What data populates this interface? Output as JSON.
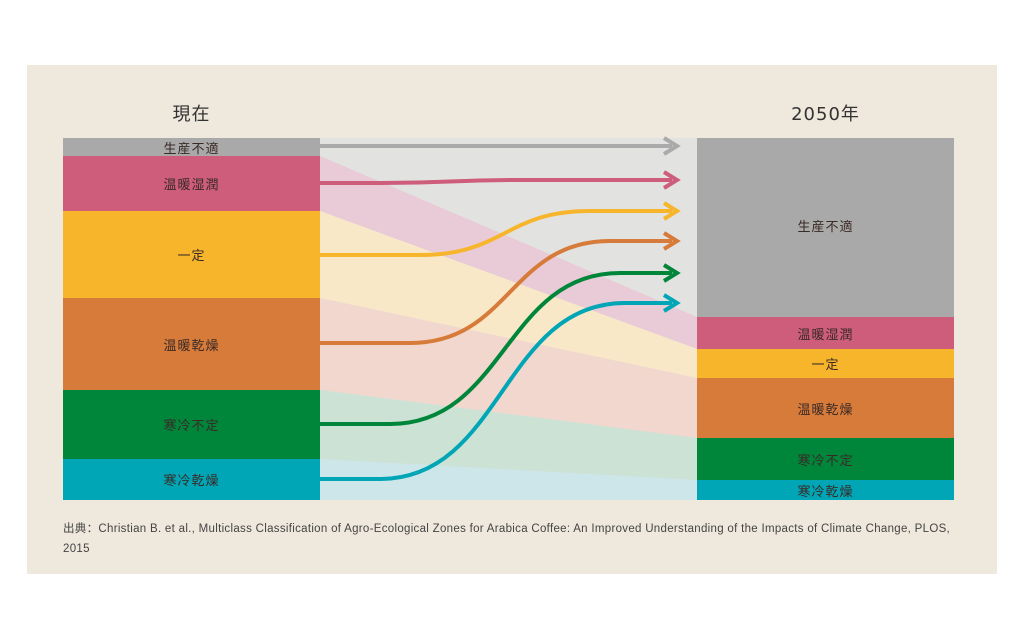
{
  "titles": {
    "left": "現在",
    "right": "2050年"
  },
  "categories": [
    {
      "label": "生産不適",
      "color": "#a9a9a9",
      "band": "#e2e2e0",
      "line": "#aaaaaa",
      "now": [
        0,
        18
      ],
      "future": [
        0,
        179
      ]
    },
    {
      "label": "温暖湿潤",
      "color": "#cd5d7b",
      "band": "#e8cbd6",
      "line": "#cd5d7b",
      "now": [
        18,
        73
      ],
      "future": [
        179,
        211
      ]
    },
    {
      "label": "一定",
      "color": "#f7b52c",
      "band": "#f8e8c8",
      "line": "#f7b52c",
      "now": [
        73,
        160
      ],
      "future": [
        211,
        240
      ]
    },
    {
      "label": "温暖乾燥",
      "color": "#d77b3a",
      "band": "#f1d7cd",
      "line": "#d77b3a",
      "now": [
        160,
        252
      ],
      "future": [
        240,
        300
      ]
    },
    {
      "label": "寒冷不定",
      "color": "#00863a",
      "band": "#cbe2d5",
      "line": "#00863a",
      "now": [
        252,
        321
      ],
      "future": [
        300,
        342
      ]
    },
    {
      "label": "寒冷乾燥",
      "color": "#00a6b5",
      "band": "#cde6e9",
      "line": "#00a6b5",
      "now": [
        321,
        362
      ],
      "future": [
        342,
        362
      ]
    }
  ],
  "scale_total": 362,
  "source": "出典：Christian B. et al., Multiclass Classification of Agro-Ecological Zones for Arabica Coffee: An Improved Understanding of the Impacts of Climate Change, PLOS, 2015"
}
